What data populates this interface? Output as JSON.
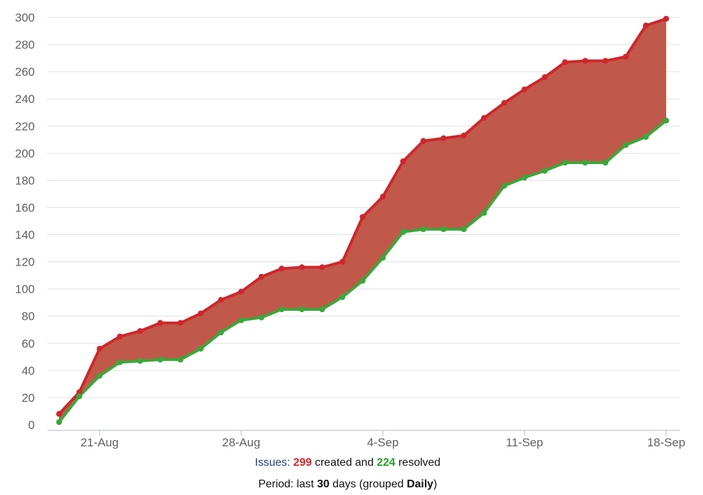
{
  "chart_data": {
    "type": "area",
    "x": [
      "19-Aug",
      "20-Aug",
      "21-Aug",
      "22-Aug",
      "23-Aug",
      "24-Aug",
      "25-Aug",
      "26-Aug",
      "27-Aug",
      "28-Aug",
      "29-Aug",
      "30-Aug",
      "31-Aug",
      "1-Sep",
      "2-Sep",
      "3-Sep",
      "4-Sep",
      "5-Sep",
      "6-Sep",
      "7-Sep",
      "8-Sep",
      "9-Sep",
      "10-Sep",
      "11-Sep",
      "12-Sep",
      "13-Sep",
      "14-Sep",
      "15-Sep",
      "16-Sep",
      "17-Sep",
      "18-Sep"
    ],
    "x_tick_labels": [
      "21-Aug",
      "28-Aug",
      "4-Sep",
      "11-Sep",
      "18-Sep"
    ],
    "series": [
      {
        "color": "#d0252c",
        "values": [
          8,
          24,
          56,
          65,
          69,
          75,
          75,
          82,
          92,
          98,
          109,
          115,
          116,
          116,
          120,
          153,
          168,
          194,
          209,
          211,
          213,
          226,
          237,
          247,
          256,
          267,
          268,
          268,
          271,
          294,
          299
        ]
      },
      {
        "color": "#3aa83a",
        "values": [
          2,
          21,
          36,
          46,
          47,
          48,
          48,
          56,
          68,
          77,
          79,
          85,
          85,
          85,
          94,
          106,
          123,
          142,
          144,
          144,
          144,
          156,
          176,
          182,
          187,
          193,
          193,
          193,
          206,
          212,
          224
        ]
      }
    ],
    "fill_between_color": "#c0594a",
    "ylim": [
      0,
      300
    ],
    "y_ticks": [
      0,
      20,
      40,
      60,
      80,
      100,
      120,
      140,
      160,
      180,
      200,
      220,
      240,
      260,
      280,
      300
    ],
    "grid": true,
    "legend": "none"
  },
  "caption": {
    "issues_word": "Issues:",
    "created_count": "299",
    "created_text": "created and",
    "resolved_count": "224",
    "resolved_text": "resolved",
    "period_prefix": "Period: last",
    "period_days": "30",
    "period_middle": "days (grouped",
    "period_group": "Daily",
    "period_suffix": ")"
  }
}
